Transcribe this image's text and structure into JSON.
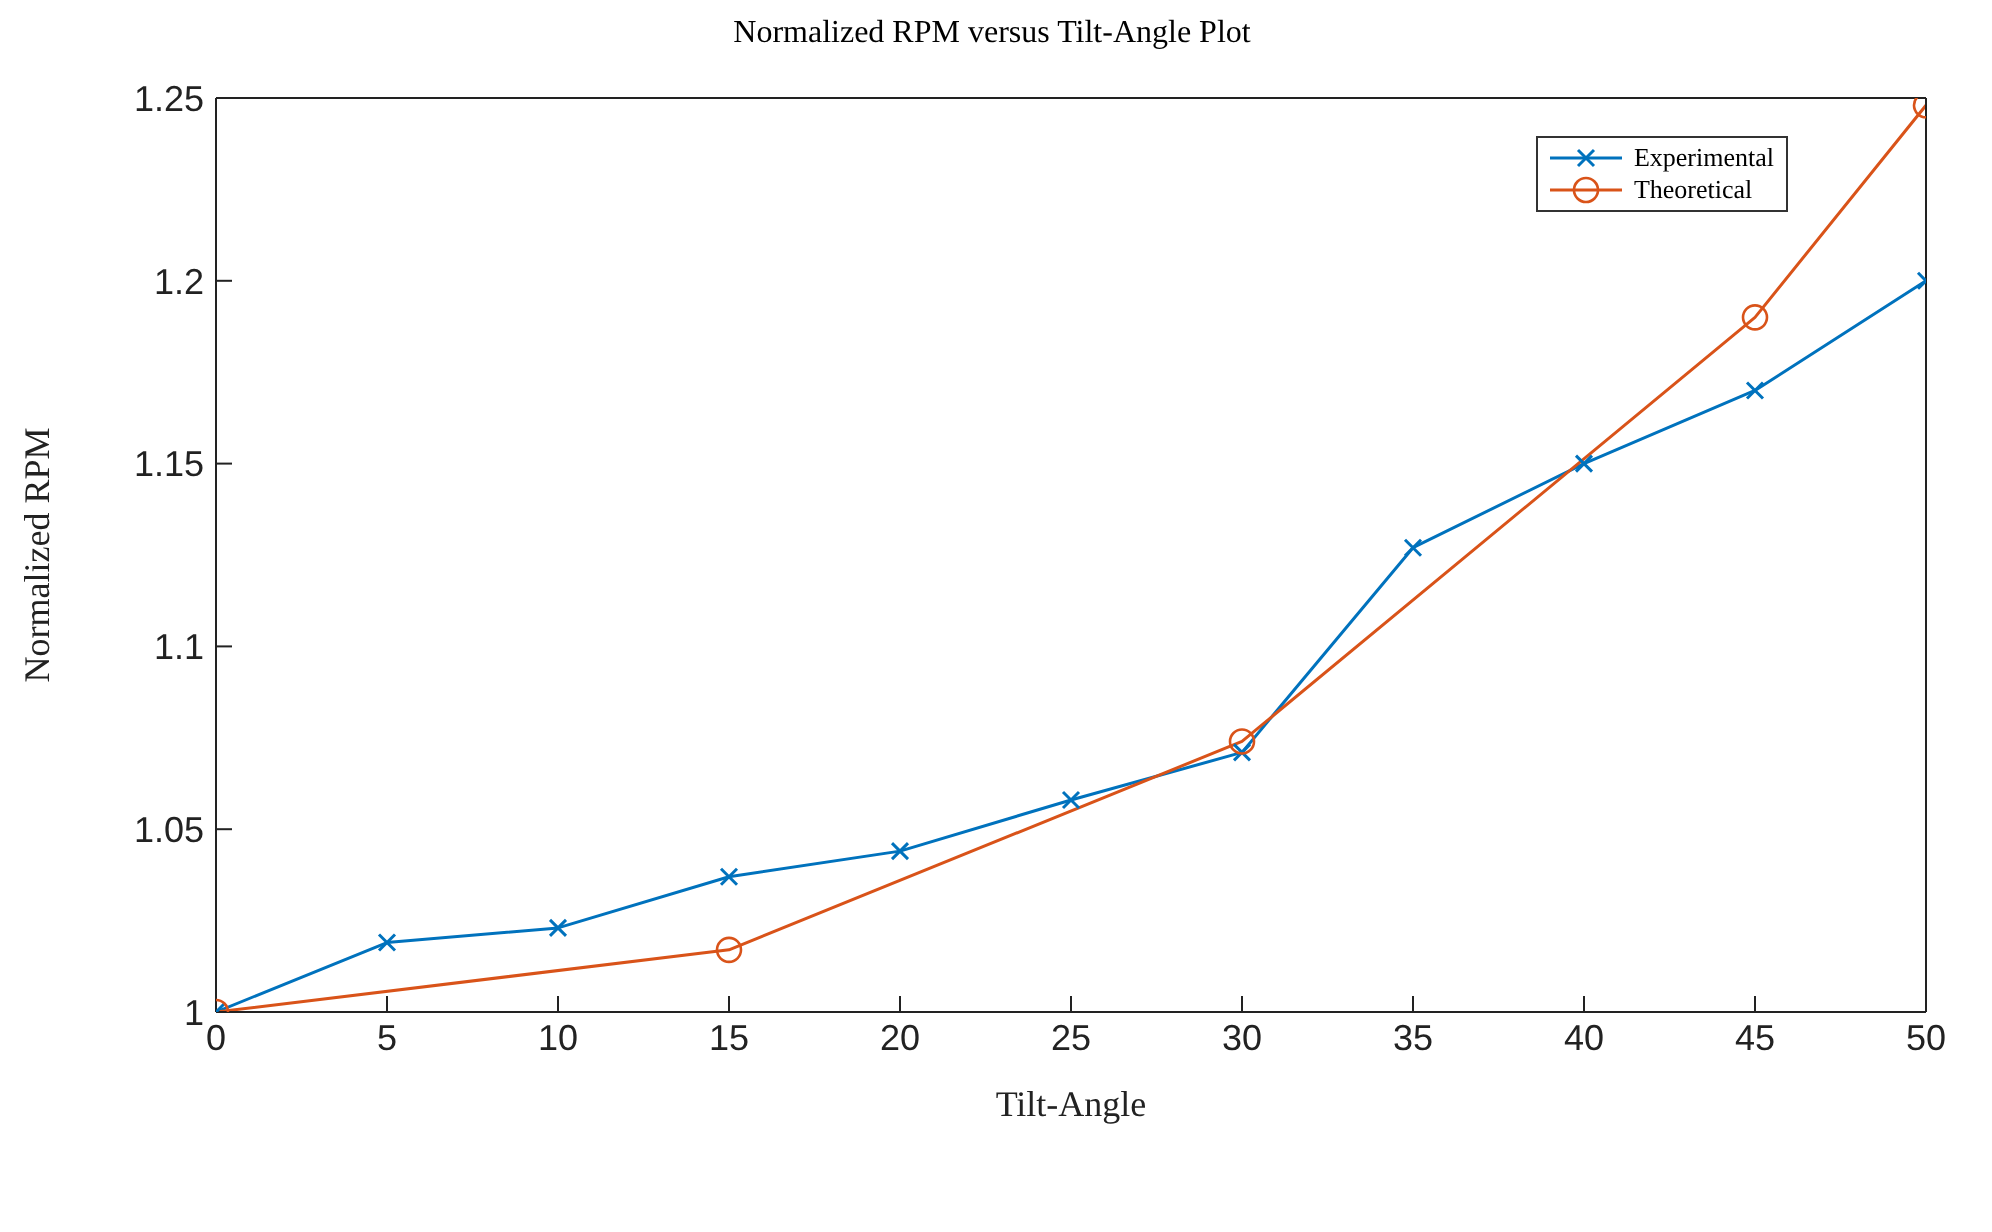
{
  "chart_data": {
    "type": "line",
    "title": "Normalized RPM versus Tilt-Angle Plot",
    "xlabel": "Tilt-Angle",
    "ylabel": "Normalized RPM",
    "series": [
      {
        "name": "Experimental",
        "color": "#0072bd",
        "marker": "cross",
        "x": [
          0,
          5,
          10,
          15,
          20,
          25,
          30,
          35,
          40,
          45,
          50
        ],
        "values": [
          1.0,
          1.019,
          1.023,
          1.037,
          1.044,
          1.058,
          1.071,
          1.127,
          1.15,
          1.17,
          1.2
        ]
      },
      {
        "name": "Theoretical",
        "color": "#d95319",
        "marker": "circle",
        "x": [
          0,
          15,
          30,
          45,
          50
        ],
        "values": [
          1.0,
          1.017,
          1.074,
          1.19,
          1.248
        ]
      }
    ],
    "xlim": [
      0,
      50
    ],
    "xticks": [
      0,
      5,
      10,
      15,
      20,
      25,
      30,
      35,
      40,
      45,
      50
    ],
    "ylim": [
      1,
      1.25
    ],
    "yticks": [
      1,
      1.05,
      1.1,
      1.15,
      1.2,
      1.25
    ],
    "legend": "top right"
  }
}
